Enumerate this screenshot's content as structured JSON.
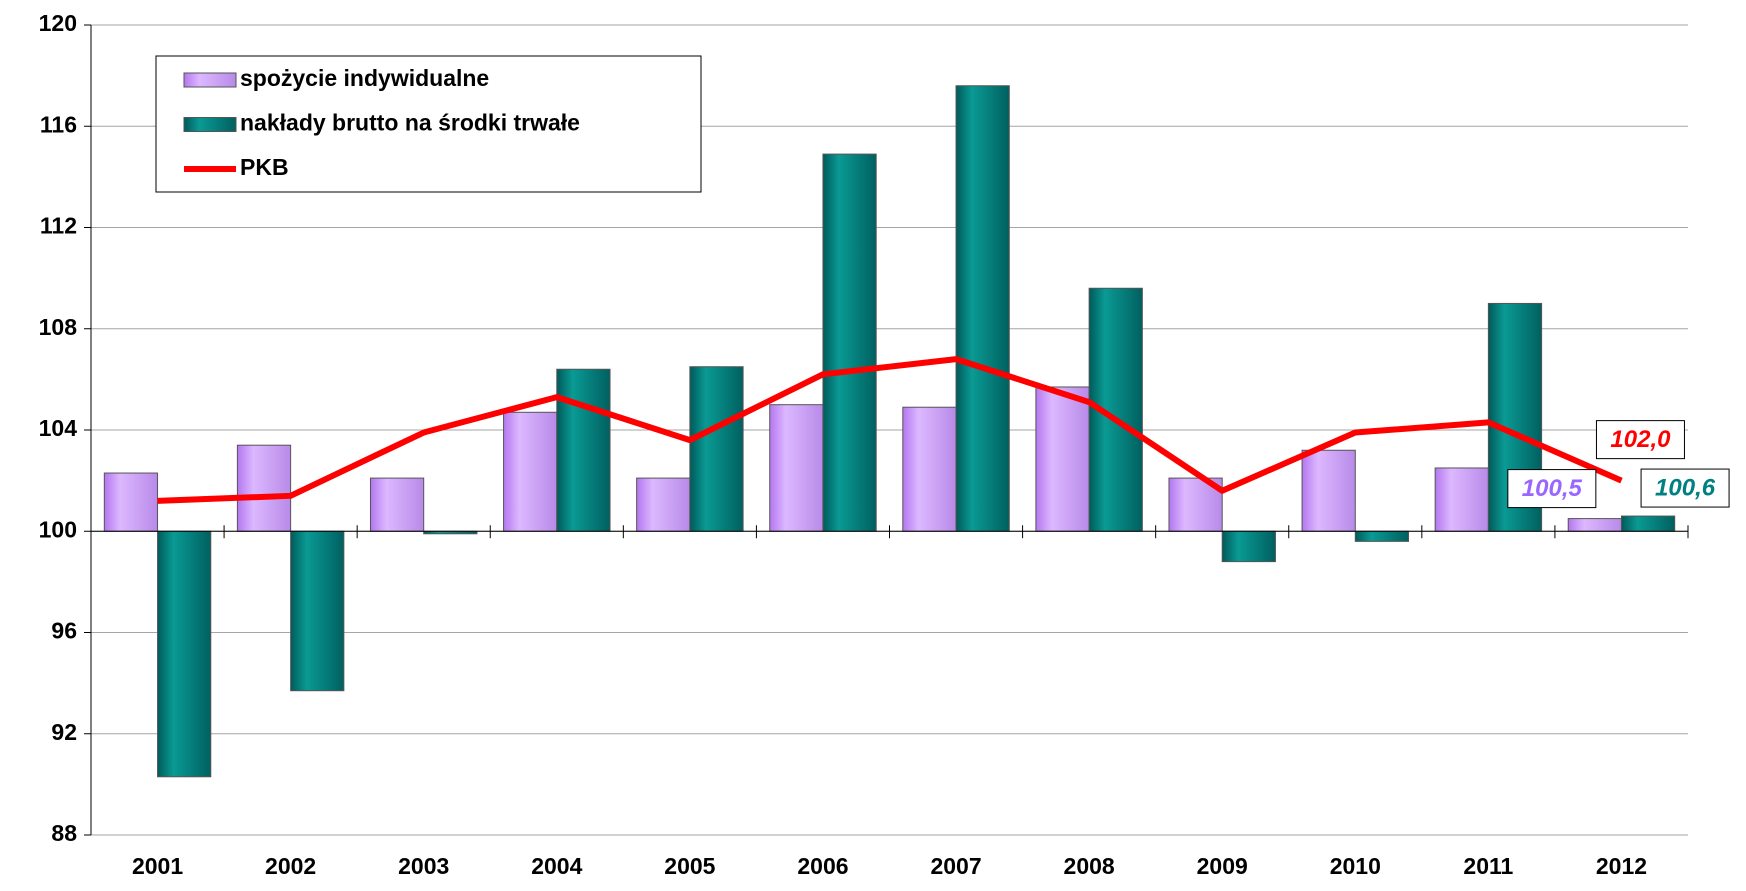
{
  "chart_data": {
    "type": "bar",
    "categories": [
      "2001",
      "2002",
      "2003",
      "2004",
      "2005",
      "2006",
      "2007",
      "2008",
      "2009",
      "2010",
      "2011",
      "2012"
    ],
    "series": [
      {
        "name": "spożycie indywidualne",
        "type": "bar",
        "color": "#cc99ff",
        "values": [
          102.3,
          103.4,
          102.1,
          104.7,
          102.1,
          105.0,
          104.9,
          105.7,
          102.1,
          103.2,
          102.5,
          100.5
        ],
        "value_labels": [
          null,
          null,
          null,
          null,
          null,
          null,
          null,
          null,
          null,
          null,
          null,
          "100,5"
        ]
      },
      {
        "name": "nakłady brutto na środki trwałe",
        "type": "bar",
        "color": "#008080",
        "values": [
          90.3,
          93.7,
          99.9,
          106.4,
          106.5,
          114.9,
          117.6,
          109.6,
          98.8,
          99.6,
          109.0,
          100.6
        ],
        "value_labels": [
          null,
          null,
          null,
          null,
          null,
          null,
          null,
          null,
          null,
          null,
          null,
          "100,6"
        ]
      },
      {
        "name": "PKB",
        "type": "line",
        "color": "#ff0000",
        "values": [
          101.2,
          101.4,
          103.9,
          105.3,
          103.6,
          106.2,
          106.8,
          105.1,
          101.6,
          103.9,
          104.3,
          102.0
        ],
        "value_labels": [
          null,
          null,
          null,
          null,
          null,
          null,
          null,
          null,
          null,
          null,
          null,
          "102,0"
        ]
      }
    ],
    "ylim": [
      88,
      120
    ],
    "yticks": [
      88,
      92,
      96,
      100,
      104,
      108,
      112,
      116,
      120
    ],
    "grid": true,
    "x_axis_crossing": 100,
    "legend": "upper left"
  }
}
